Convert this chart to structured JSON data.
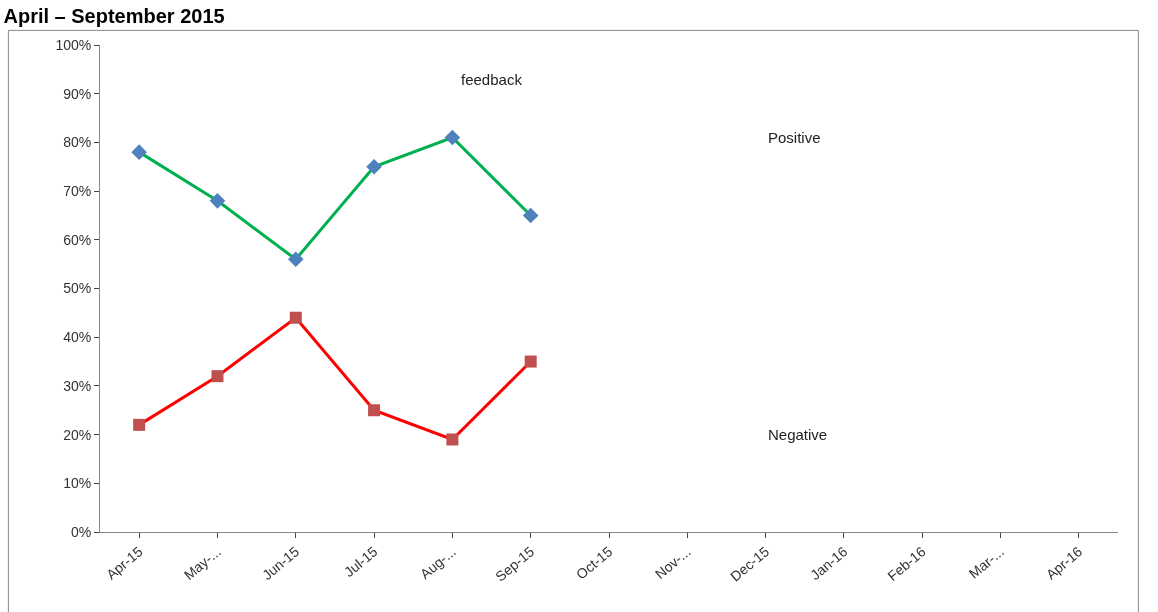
{
  "chart_data": {
    "type": "line",
    "title": "April – September 2015",
    "categories": [
      "Apr-15",
      "May-...",
      "Jun-15",
      "Jul-15",
      "Aug-...",
      "Sep-15",
      "Oct-15",
      "Nov-...",
      "Dec-15",
      "Jan-16",
      "Feb-16",
      "Mar-...",
      "Apr-16"
    ],
    "series": [
      {
        "name": "Positive",
        "color": "#00b050",
        "colors": [
          "#4f81bd",
          "#4f81bd",
          "#4f81bd",
          "#4f81bd",
          "#4f81bd",
          "#4f81bd",
          null,
          null,
          null,
          null,
          null,
          null,
          null
        ],
        "marker": "diamond",
        "values": [
          78,
          68,
          56,
          75,
          81,
          65,
          null,
          null,
          null,
          null,
          null,
          null,
          null
        ]
      },
      {
        "name": "Negative",
        "color": "#ff0000",
        "colors": [
          "#c0504d",
          "#c0504d",
          "#c0504d",
          "#c0504d",
          "#c0504d",
          "#c0504d",
          null,
          null,
          null,
          null,
          null,
          null,
          null
        ],
        "marker": "square",
        "values": [
          22,
          32,
          44,
          25,
          19,
          35,
          null,
          null,
          null,
          null,
          null,
          null,
          null
        ]
      }
    ],
    "annotations": [
      "feedback"
    ],
    "ylim": [
      0,
      100
    ],
    "yticks": [
      {
        "value": 0,
        "label": "0%"
      },
      {
        "value": 10,
        "label": "10%"
      },
      {
        "value": 20,
        "label": "20%"
      },
      {
        "value": 30,
        "label": "30%"
      },
      {
        "value": 40,
        "label": "40%"
      },
      {
        "value": 50,
        "label": "50%"
      },
      {
        "value": 60,
        "label": "60%"
      },
      {
        "value": 70,
        "label": "70%"
      },
      {
        "value": 80,
        "label": "80%"
      },
      {
        "value": 90,
        "label": "90%"
      },
      {
        "value": 100,
        "label": "100%"
      }
    ],
    "legend": false
  }
}
